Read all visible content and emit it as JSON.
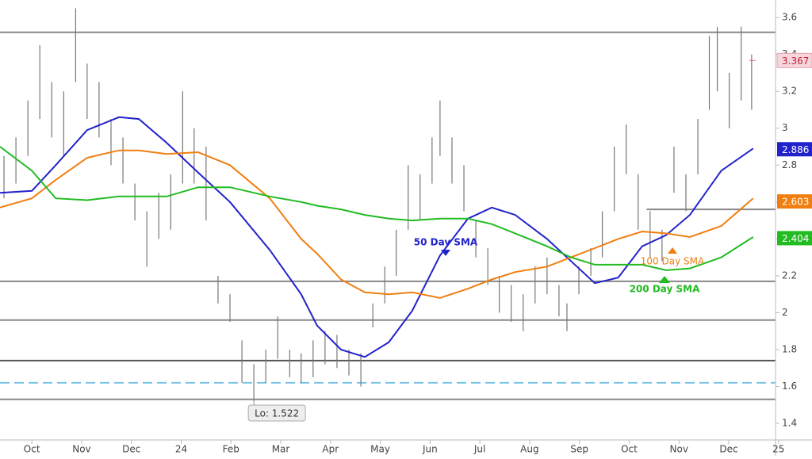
{
  "chart_data": {
    "type": "line",
    "xlim": [
      -0.64,
      14.94
    ],
    "ylim": [
      1.31,
      3.695
    ],
    "yticks": [
      1.4,
      1.6,
      1.8,
      2,
      2.2,
      2.4,
      2.6,
      2.8,
      3,
      3.2,
      3.4,
      3.6
    ],
    "xticks": [
      {
        "value": 0,
        "label": "Oct"
      },
      {
        "value": 1,
        "label": "Nov"
      },
      {
        "value": 2,
        "label": "Dec"
      },
      {
        "value": 3,
        "label": "24"
      },
      {
        "value": 4,
        "label": "Feb"
      },
      {
        "value": 5,
        "label": "Mar"
      },
      {
        "value": 6,
        "label": "Apr"
      },
      {
        "value": 7,
        "label": "May"
      },
      {
        "value": 8,
        "label": "Jun"
      },
      {
        "value": 9,
        "label": "Jul"
      },
      {
        "value": 10,
        "label": "Aug"
      },
      {
        "value": 11,
        "label": "Sep"
      },
      {
        "value": 12,
        "label": "Oct"
      },
      {
        "value": 13,
        "label": "Nov"
      },
      {
        "value": 14,
        "label": "Dec"
      },
      {
        "value": 15,
        "label": "25"
      }
    ],
    "x": [
      -0.64,
      0,
      0.48,
      1.11,
      1.75,
      2.15,
      2.71,
      3.34,
      3.98,
      4.78,
      5.41,
      5.73,
      6.21,
      6.69,
      7.17,
      7.64,
      8.2,
      8.76,
      9.24,
      9.71,
      10.35,
      10.83,
      11.31,
      11.78,
      12.26,
      12.74,
      13.22,
      13.85,
      14.49
    ],
    "series": [
      {
        "name": "50 Day SMA",
        "color": "#2222cc",
        "last": 2.886,
        "values": [
          2.65,
          2.66,
          2.8,
          2.99,
          3.06,
          3.05,
          2.92,
          2.76,
          2.6,
          2.34,
          2.1,
          1.93,
          1.8,
          1.76,
          1.84,
          2.01,
          2.31,
          2.51,
          2.57,
          2.53,
          2.4,
          2.28,
          2.16,
          2.19,
          2.36,
          2.42,
          2.53,
          2.77,
          2.89
        ]
      },
      {
        "name": "100 Day SMA",
        "color": "#f07f10",
        "last": 2.603,
        "values": [
          2.57,
          2.62,
          2.72,
          2.84,
          2.88,
          2.88,
          2.86,
          2.87,
          2.8,
          2.62,
          2.4,
          2.32,
          2.18,
          2.11,
          2.1,
          2.11,
          2.08,
          2.13,
          2.18,
          2.22,
          2.25,
          2.3,
          2.35,
          2.4,
          2.44,
          2.43,
          2.41,
          2.47,
          2.62
        ]
      },
      {
        "name": "200 Day SMA",
        "color": "#22bb22",
        "last": 2.404,
        "values": [
          2.9,
          2.77,
          2.62,
          2.61,
          2.63,
          2.63,
          2.63,
          2.68,
          2.68,
          2.63,
          2.6,
          2.58,
          2.56,
          2.53,
          2.51,
          2.5,
          2.51,
          2.51,
          2.48,
          2.43,
          2.36,
          2.3,
          2.26,
          2.26,
          2.26,
          2.23,
          2.24,
          2.3,
          2.41
        ]
      }
    ],
    "price": {
      "last": 3.367,
      "x": [
        -0.56,
        -0.32,
        -0.08,
        0.16,
        0.4,
        0.64,
        0.88,
        1.11,
        1.35,
        1.59,
        1.83,
        2.07,
        2.31,
        2.55,
        2.79,
        3.03,
        3.26,
        3.5,
        3.74,
        3.98,
        4.22,
        4.46,
        4.7,
        4.94,
        5.18,
        5.41,
        5.65,
        5.89,
        6.13,
        6.37,
        6.61,
        6.85,
        7.09,
        7.32,
        7.56,
        7.8,
        8.04,
        8.2,
        8.44,
        8.68,
        8.92,
        9.16,
        9.39,
        9.63,
        9.87,
        10.11,
        10.35,
        10.59,
        10.75,
        10.99,
        11.23,
        11.46,
        11.7,
        11.94,
        12.18,
        12.42,
        12.66,
        12.9,
        13.14,
        13.38,
        13.61,
        13.77,
        14.01,
        14.25,
        14.46
      ],
      "high": [
        2.85,
        2.95,
        3.15,
        3.45,
        3.25,
        3.2,
        3.65,
        3.35,
        3.25,
        3.05,
        2.95,
        2.7,
        2.55,
        2.65,
        2.75,
        3.2,
        3.0,
        2.9,
        2.2,
        2.1,
        1.85,
        1.72,
        1.8,
        1.98,
        1.8,
        1.78,
        1.85,
        1.9,
        1.88,
        1.8,
        1.78,
        2.05,
        2.25,
        2.45,
        2.8,
        2.75,
        2.95,
        3.15,
        2.95,
        2.8,
        2.5,
        2.35,
        2.2,
        2.15,
        2.1,
        2.25,
        2.3,
        2.15,
        2.05,
        2.25,
        2.35,
        2.55,
        2.9,
        3.02,
        2.75,
        2.55,
        2.45,
        2.9,
        2.75,
        3.05,
        3.5,
        3.55,
        3.3,
        3.55,
        3.4
      ],
      "low": [
        2.62,
        2.7,
        2.85,
        3.05,
        2.95,
        2.85,
        3.25,
        3.05,
        2.95,
        2.8,
        2.7,
        2.5,
        2.25,
        2.4,
        2.45,
        2.7,
        2.7,
        2.5,
        2.05,
        1.95,
        1.62,
        1.52,
        1.62,
        1.75,
        1.65,
        1.62,
        1.65,
        1.72,
        1.7,
        1.66,
        1.6,
        1.92,
        2.05,
        2.2,
        2.45,
        2.5,
        2.7,
        2.85,
        2.7,
        2.55,
        2.3,
        2.15,
        2.0,
        1.95,
        1.9,
        2.05,
        2.1,
        1.98,
        1.9,
        2.1,
        2.2,
        2.3,
        2.55,
        2.75,
        2.45,
        2.3,
        2.28,
        2.65,
        2.55,
        2.75,
        3.1,
        3.2,
        3.0,
        3.15,
        3.1
      ]
    },
    "levels": [
      3.52,
      2.17,
      1.96,
      1.74,
      1.53
    ],
    "partial_level": {
      "value": 2.56,
      "from_x": 12.35
    },
    "dashed_level": 1.62,
    "low_label": "Lo: 1.522"
  }
}
